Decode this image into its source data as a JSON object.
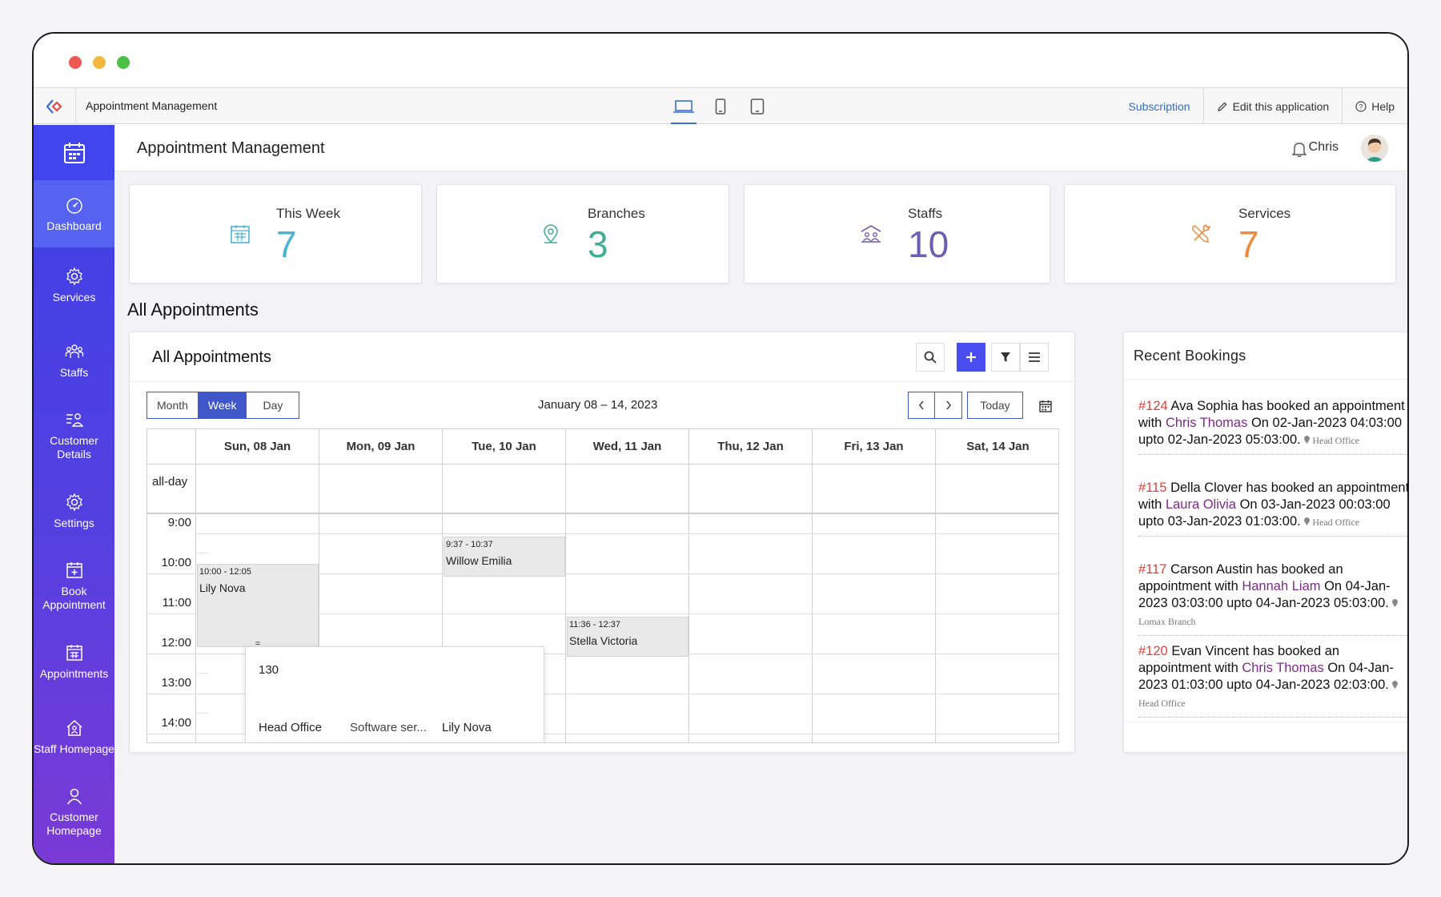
{
  "app": {
    "name": "Appointment Management",
    "subscription": "Subscription",
    "edit": "Edit this application",
    "help": "Help"
  },
  "sidebar": {
    "items": [
      {
        "label": "Dashboard",
        "icon": "dashboard-icon"
      },
      {
        "label": "Services",
        "icon": "gear-icon"
      },
      {
        "label": "Staffs",
        "icon": "staffs-icon"
      },
      {
        "label": "Customer Details",
        "icon": "customer-details-icon"
      },
      {
        "label": "Settings",
        "icon": "settings-icon"
      },
      {
        "label": "Book Appointment",
        "icon": "calendar-plus-icon"
      },
      {
        "label": "Appointments",
        "icon": "calendar-grid-icon"
      },
      {
        "label": "Staff Homepage",
        "icon": "home-user-icon"
      },
      {
        "label": "Customer Homepage",
        "icon": "user-icon"
      }
    ]
  },
  "header": {
    "title": "Appointment Management",
    "user": "Chris"
  },
  "stats": [
    {
      "label": "This Week",
      "value": "7",
      "color": "#4bb3d6",
      "bg": "#dff3f9"
    },
    {
      "label": "Branches",
      "value": "3",
      "color": "#3fae95",
      "bg": "#dcf2ed"
    },
    {
      "label": "Staffs",
      "value": "10",
      "color": "#6a5fb0",
      "bg": "#e4e1f3"
    },
    {
      "label": "Services",
      "value": "7",
      "color": "#ef8a3c",
      "bg": "#fde8d8"
    }
  ],
  "section_title": "All Appointments",
  "calendar": {
    "title": "All Appointments",
    "views": [
      "Month",
      "Week",
      "Day"
    ],
    "active_view": "Week",
    "range": "January 08 – 14, 2023",
    "today": "Today",
    "days": [
      "Sun, 08 Jan",
      "Mon, 09 Jan",
      "Tue, 10 Jan",
      "Wed, 11 Jan",
      "Thu, 12 Jan",
      "Fri, 13 Jan",
      "Sat, 14 Jan"
    ],
    "allday": "all-day",
    "times": [
      "9:00",
      "10:00",
      "11:00",
      "12:00",
      "13:00",
      "14:00"
    ],
    "events": [
      {
        "time": "10:00 - 12:05",
        "name": "Lily Nova"
      },
      {
        "time": "9:37 - 10:37",
        "name": "Willow Emilia"
      },
      {
        "time": "11:36 - 12:37",
        "name": "Stella Victoria"
      }
    ],
    "popover": {
      "id": "130",
      "branch": "Head Office",
      "service": "Software ser...",
      "customer": "Lily Nova"
    },
    "resize_handle": "="
  },
  "recent": {
    "title": "Recent Bookings",
    "items": [
      {
        "id": "#124",
        "pre": "Ava Sophia has booked an appointment with",
        "staff": "Chris Thomas",
        "post": "On 02-Jan-2023 04:03:00 upto 02-Jan-2023 05:03:00.",
        "loc": "Head Office"
      },
      {
        "id": "#115",
        "pre": "Della Clover has booked an appointment with",
        "staff": "Laura Olivia",
        "post": "On 03-Jan-2023 00:03:00 upto 03-Jan-2023 01:03:00.",
        "loc": "Head Office"
      },
      {
        "id": "#117",
        "pre": "Carson Austin has booked an appointment with",
        "staff": "Hannah Liam",
        "post": "On 04-Jan-2023 03:03:00 upto 04-Jan-2023 05:03:00.",
        "loc": "Lomax Branch"
      },
      {
        "id": "#120",
        "pre": "Evan Vincent has booked an appointment with",
        "staff": "Chris Thomas",
        "post": "On 04-Jan-2023 01:03:00 upto 04-Jan-2023 02:03:00.",
        "loc": "Head Office"
      }
    ]
  }
}
